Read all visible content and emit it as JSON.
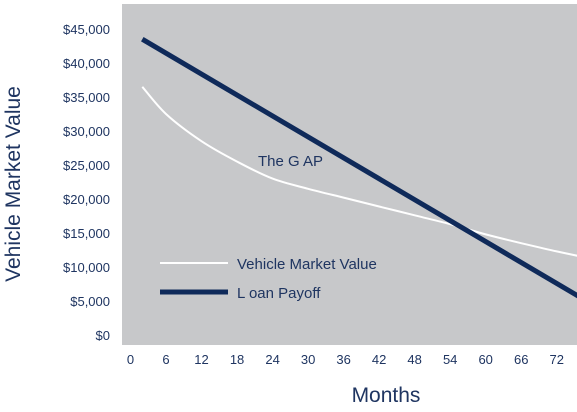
{
  "chart_data": {
    "type": "line",
    "xlabel": "Months",
    "ylabel": "Vehicle Market Value",
    "x_ticks": [
      "0",
      "6",
      "12",
      "18",
      "24",
      "30",
      "36",
      "42",
      "48",
      "54",
      "60",
      "66",
      "72"
    ],
    "y_ticks": [
      "$0",
      "$5,000",
      "$10,000",
      "$15,000",
      "$20,000",
      "$25,000",
      "$30,000",
      "$35,000",
      "$40,000",
      "$45,000"
    ],
    "xlim": [
      0,
      78
    ],
    "ylim": [
      0,
      45000
    ],
    "grid": false,
    "legend_position": "bottom-left",
    "annotation": "The G AP",
    "series": [
      {
        "name": "Vehicle Market Value",
        "color": "#ffffff",
        "x": [
          2,
          6,
          12,
          18,
          24,
          30,
          36,
          42,
          48,
          54,
          60,
          66,
          72,
          78
        ],
        "y": [
          36500,
          32500,
          28500,
          25500,
          23000,
          21500,
          20200,
          18900,
          17600,
          16300,
          14800,
          13500,
          12300,
          11200
        ]
      },
      {
        "name": "L oan Payoff",
        "color": "#0f2a5a",
        "x": [
          2,
          78
        ],
        "y": [
          43500,
          4500
        ]
      }
    ]
  }
}
